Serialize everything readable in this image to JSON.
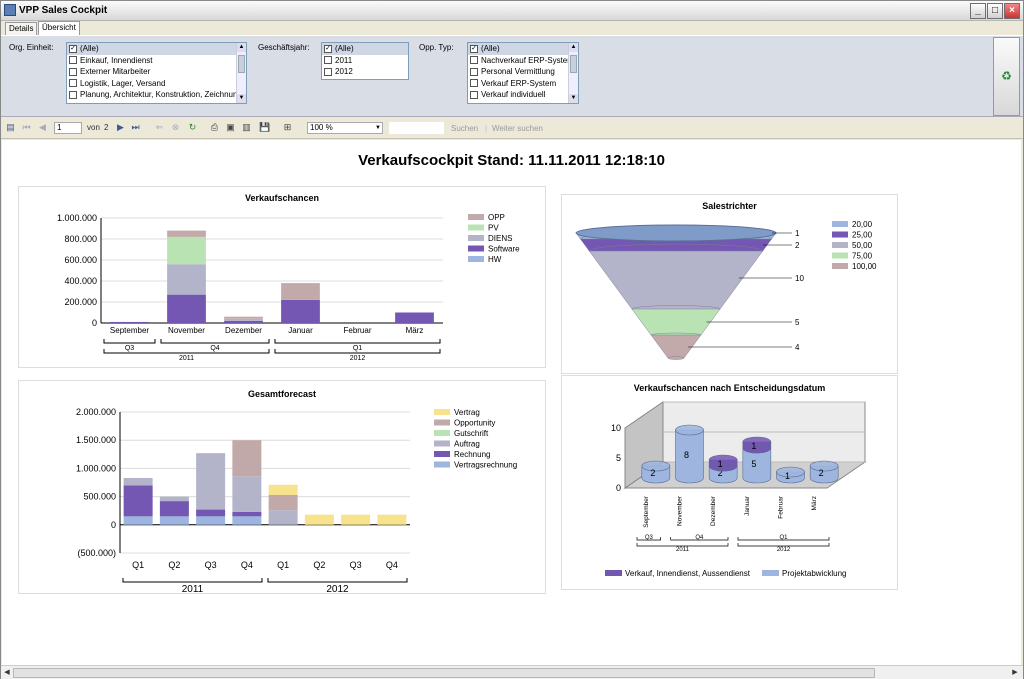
{
  "window": {
    "title": "VPP Sales Cockpit"
  },
  "tabs": [
    {
      "label": "Details"
    },
    {
      "label": "Übersicht"
    }
  ],
  "params": {
    "org_label": "Org. Einheit:",
    "org_items": [
      "(Alle)",
      "Einkauf, Innendienst",
      "Externer Mitarbeiter",
      "Logistik, Lager, Versand",
      "Planung, Architektur, Konstruktion, Zeichnung"
    ],
    "year_label": "Geschäftsjahr:",
    "year_items": [
      "(Alle)",
      "2011",
      "2012"
    ],
    "type_label": "Opp. Typ:",
    "type_items": [
      "(Alle)",
      "Nachverkauf ERP-System",
      "Personal Vermittlung",
      "Verkauf ERP-System",
      "Verkauf individuell"
    ]
  },
  "toolbar": {
    "page": "1",
    "of_label": "von",
    "total_pages": "2",
    "zoom": "100 %",
    "search_label": "Suchen",
    "next_label": "Weiter suchen"
  },
  "report": {
    "title": "Verkaufscockpit Stand: 11.11.2011 12:18:10"
  },
  "colors": {
    "OPP": "#c3aaaa",
    "PV": "#b9e3b3",
    "DIENS": "#b3b4c9",
    "Software": "#7456b3",
    "HW": "#9db5df",
    "Vertrag": "#f7e28e",
    "Opportunity": "#c2a9a9"
  },
  "chart_data": [
    {
      "type": "bar",
      "title": "Verkaufschancen",
      "stacked": true,
      "categories": [
        "September",
        "November",
        "Dezember",
        "Januar",
        "Februar",
        "März"
      ],
      "groups_level1": [
        {
          "label": "Q3",
          "span": 1
        },
        {
          "label": "Q4",
          "span": 2
        },
        {
          "label": "Q1",
          "span": 3
        }
      ],
      "groups_level2": [
        {
          "label": "2011",
          "span": 3
        },
        {
          "label": "2012",
          "span": 3
        }
      ],
      "ylim": [
        0,
        1000000
      ],
      "yticks": [
        "0",
        "200.000",
        "400.000",
        "600.000",
        "800.000",
        "1.000.000"
      ],
      "series": [
        {
          "name": "HW",
          "values": [
            0,
            0,
            0,
            0,
            0,
            0
          ]
        },
        {
          "name": "Software",
          "values": [
            10000,
            270000,
            20000,
            220000,
            0,
            100000
          ]
        },
        {
          "name": "DIENS",
          "values": [
            0,
            290000,
            20000,
            0,
            0,
            0
          ]
        },
        {
          "name": "PV",
          "values": [
            0,
            260000,
            0,
            0,
            0,
            0
          ]
        },
        {
          "name": "OPP",
          "values": [
            0,
            60000,
            20000,
            160000,
            0,
            0
          ]
        }
      ],
      "legend": [
        "OPP",
        "PV",
        "DIENS",
        "Software",
        "HW"
      ]
    },
    {
      "type": "bar",
      "title": "Gesamtforecast",
      "stacked": true,
      "categories": [
        "Q1",
        "Q2",
        "Q3",
        "Q4",
        "Q1",
        "Q2",
        "Q3",
        "Q4"
      ],
      "groups_level1": [
        {
          "label": "2011",
          "span": 4
        },
        {
          "label": "2012",
          "span": 4
        }
      ],
      "ylim": [
        -500000,
        2000000
      ],
      "yticks": [
        "(500.000)",
        "0",
        "500.000",
        "1.000.000",
        "1.500.000",
        "2.000.000"
      ],
      "series": [
        {
          "name": "Vertragsrechnung",
          "values": [
            150000,
            150000,
            150000,
            150000,
            0,
            0,
            0,
            0
          ]
        },
        {
          "name": "Rechnung",
          "values": [
            550000,
            270000,
            120000,
            80000,
            0,
            0,
            0,
            0
          ]
        },
        {
          "name": "Auftrag",
          "values": [
            130000,
            80000,
            1000000,
            630000,
            260000,
            0,
            0,
            0
          ]
        },
        {
          "name": "Gutschrift",
          "values": [
            0,
            0,
            0,
            0,
            0,
            0,
            0,
            0
          ]
        },
        {
          "name": "Opportunity",
          "values": [
            0,
            0,
            0,
            640000,
            270000,
            0,
            0,
            0
          ]
        },
        {
          "name": "Vertrag",
          "values": [
            0,
            0,
            0,
            0,
            180000,
            180000,
            180000,
            180000
          ]
        }
      ],
      "legend": [
        "Vertrag",
        "Opportunity",
        "Gutschrift",
        "Auftrag",
        "Rechnung",
        "Vertragsrechnung"
      ]
    },
    {
      "type": "funnel",
      "title": "Salestrichter",
      "labels": [
        "1",
        "2",
        "10",
        "5",
        "4"
      ],
      "colors_by_level": [
        "#9db5df",
        "#7456b3",
        "#b3b4c9",
        "#b9e3b3",
        "#c3aaaa"
      ],
      "legend": [
        "20,00",
        "25,00",
        "50,00",
        "75,00",
        "100,00"
      ]
    },
    {
      "type": "bar",
      "title": "Verkaufschancen nach Entscheidungsdatum",
      "stacked": true,
      "categories": [
        "September",
        "November",
        "Dezember",
        "Januar",
        "Februar",
        "März"
      ],
      "groups_level1": [
        {
          "label": "Q3",
          "span": 1
        },
        {
          "label": "Q4",
          "span": 2
        },
        {
          "label": "Q1",
          "span": 3
        }
      ],
      "groups_level2": [
        {
          "label": "2011",
          "span": 3
        },
        {
          "label": "2012",
          "span": 3
        }
      ],
      "ylim": [
        0,
        10
      ],
      "yticks": [
        "0",
        "5",
        "10"
      ],
      "series": [
        {
          "name": "Projektabwicklung",
          "values": [
            2,
            8,
            2,
            5,
            1,
            2
          ]
        },
        {
          "name": "Verkauf, Innendienst, Aussendienst",
          "values": [
            0,
            0,
            1,
            1,
            0,
            0
          ]
        }
      ],
      "legend": [
        "Verkauf, Innendienst, Aussendienst",
        "Projektabwicklung"
      ]
    }
  ]
}
